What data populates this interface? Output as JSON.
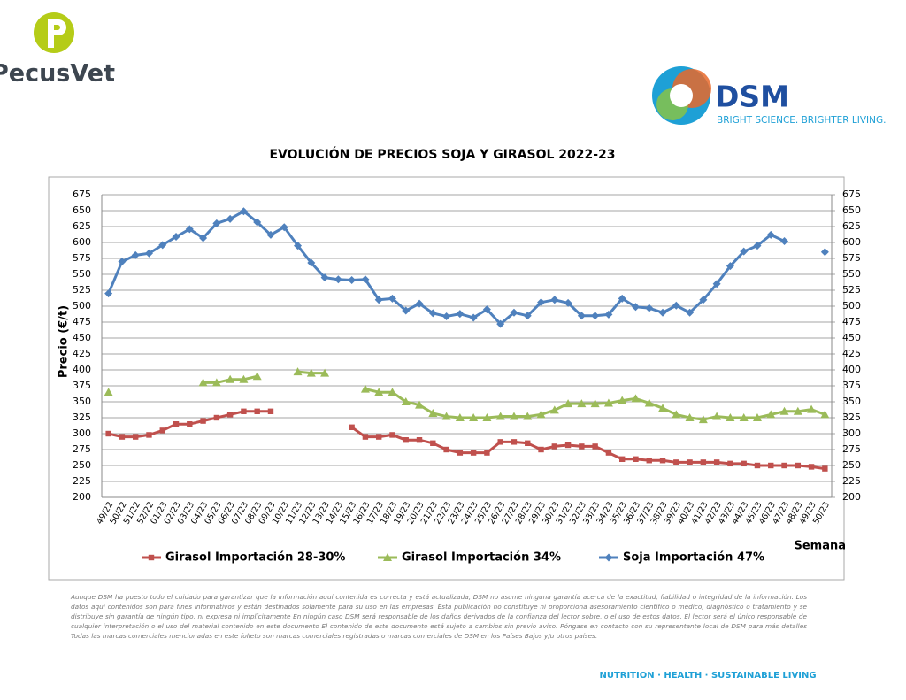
{
  "logo_left": {
    "text": "PecusVet"
  },
  "logo_right": {
    "brand": "DSM",
    "tagline": "BRIGHT SCIENCE. BRIGHTER LIVING."
  },
  "chart_data": {
    "type": "line",
    "title": "EVOLUCIÓN DE PRECIOS SOJA Y GIRASOL 2022-23",
    "y_label": "Precio (€/t)",
    "x_label": "Semana",
    "categories": [
      "49/22",
      "50/22",
      "51/22",
      "52/22",
      "01/23",
      "02/23",
      "03/23",
      "04/23",
      "05/23",
      "06/23",
      "07/23",
      "08/23",
      "09/23",
      "10/23",
      "11/23",
      "12/23",
      "13/23",
      "14/23",
      "15/23",
      "16/23",
      "17/23",
      "18/23",
      "19/23",
      "20/23",
      "21/23",
      "22/23",
      "23/23",
      "24/23",
      "25/23",
      "26/23",
      "27/23",
      "28/23",
      "29/23",
      "30/23",
      "31/23",
      "32/23",
      "33/23",
      "34/23",
      "35/23",
      "36/23",
      "37/23",
      "38/23",
      "39/23",
      "40/23",
      "41/23",
      "42/23",
      "43/23",
      "44/23",
      "45/23",
      "46/23",
      "47/23",
      "48/23",
      "49/23",
      "50/23"
    ],
    "series": [
      {
        "name": "Girasol Importación 28-30%",
        "color": "#c0504d",
        "marker": "square",
        "values": [
          300,
          295,
          295,
          298,
          305,
          315,
          315,
          320,
          325,
          330,
          335,
          335,
          335,
          null,
          null,
          null,
          null,
          null,
          310,
          295,
          295,
          298,
          290,
          290,
          285,
          275,
          270,
          270,
          270,
          287,
          287,
          285,
          275,
          280,
          282,
          280,
          280,
          270,
          260,
          260,
          258,
          258,
          255,
          255,
          255,
          255,
          253,
          253,
          250,
          250,
          250,
          250,
          248,
          245
        ]
      },
      {
        "name": "Girasol Importación 34%",
        "color": "#9bbb59",
        "marker": "triangle",
        "values": [
          365,
          null,
          null,
          null,
          null,
          null,
          null,
          380,
          380,
          385,
          385,
          390,
          null,
          null,
          397,
          395,
          395,
          null,
          null,
          370,
          365,
          365,
          350,
          345,
          332,
          327,
          325,
          325,
          325,
          327,
          327,
          327,
          330,
          337,
          347,
          347,
          347,
          348,
          352,
          355,
          348,
          340,
          330,
          325,
          322,
          327,
          325,
          325,
          325,
          330,
          335,
          335,
          338,
          330
        ]
      },
      {
        "name": "Soja Importación 47%",
        "color": "#4f81bd",
        "marker": "diamond",
        "values": [
          520,
          570,
          580,
          583,
          596,
          609,
          621,
          607,
          630,
          637,
          649,
          632,
          612,
          624,
          595,
          568,
          545,
          542,
          541,
          542,
          510,
          512,
          493,
          504,
          489,
          484,
          488,
          482,
          495,
          472,
          490,
          485,
          506,
          510,
          505,
          485,
          485,
          487,
          512,
          499,
          497,
          490,
          501,
          490,
          510,
          535,
          563,
          586,
          595,
          612,
          602,
          null,
          null,
          585
        ]
      }
    ],
    "ylim": [
      200,
      675
    ],
    "yticks": [
      200,
      225,
      250,
      275,
      300,
      325,
      350,
      375,
      400,
      425,
      450,
      475,
      500,
      525,
      550,
      575,
      600,
      625,
      650,
      675
    ],
    "y2lim": [
      200,
      675
    ],
    "y2ticks": [
      200,
      225,
      250,
      275,
      300,
      325,
      350,
      375,
      400,
      425,
      450,
      475,
      500,
      525,
      550,
      575,
      600,
      625,
      650,
      675
    ],
    "grid": true,
    "legend": "bottom"
  },
  "disclaimer": "Aunque DSM ha puesto todo el cuidado para garantizar que la información aquí contenida es correcta y está actualizada, DSM no asume ninguna garantía acerca de la exactitud, fiabilidad o integridad de la información. Los datos aquí contenidos son para fines informativos y están destinados solamente para su uso en las empresas. Esta publicación no constituye ni proporciona asesoramiento científico o médico, diagnóstico o tratamiento y se distribuye sin garantía de ningún tipo, ni expresa ni implícitamente En ningún caso DSM será responsable de los daños derivados de la confianza del lector sobre, o el uso de estos datos. El lector será el único responsable de cualquier interpretación o el uso del material contenido en este documento El contenido de este documento está sujeto a cambios sin previo aviso. Póngase en contacto con su representante local de DSM para más detalles Todas las marcas comerciales mencionadas en este folleto son marcas comerciales registradas o marcas comerciales de DSM en los Países Bajos y/u otros países.",
  "footer": "NUTRITION · HEALTH · SUSTAINABLE LIVING"
}
